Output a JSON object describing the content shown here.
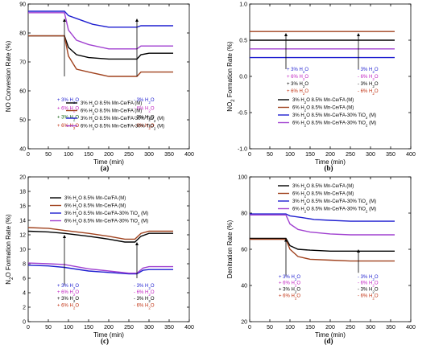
{
  "chart_data": [
    {
      "id": "a",
      "type": "line",
      "panel_label": "(a)",
      "xlabel": "Time (min)",
      "ylabel": "NO Conversion Rate (%)",
      "xlim": [
        0,
        400
      ],
      "ylim": [
        40,
        90
      ],
      "xticks": [
        0,
        50,
        100,
        150,
        200,
        250,
        300,
        350,
        400
      ],
      "yticks": [
        40,
        50,
        60,
        70,
        80,
        90
      ],
      "arrows": [
        {
          "x": 90,
          "y0": 65,
          "y1": 85
        },
        {
          "x": 270,
          "y0": 65,
          "y1": 85
        }
      ],
      "annotations": [
        {
          "side": "left",
          "x": 72,
          "lines": [
            {
              "text": "+ 3% H₂O",
              "color": "#1f1fd0",
              "y": 57
            },
            {
              "text": "+ 6% H₂O",
              "color": "#c020c0",
              "y": 54
            },
            {
              "text": "+ 3% H₂O",
              "color": "#106010",
              "y": 51
            },
            {
              "text": "+ 6% H₂O",
              "color": "#c03010",
              "y": 48
            }
          ]
        },
        {
          "side": "right",
          "x": 262,
          "lines": [
            {
              "text": "- 3% H₂O",
              "color": "#1f1fd0",
              "y": 57
            },
            {
              "text": "- 6% H₂O",
              "color": "#c020c0",
              "y": 54
            },
            {
              "text": "- 3% H₂O",
              "color": "#000000",
              "y": 51
            },
            {
              "text": "- 6% H₂O",
              "color": "#c03010",
              "y": 48
            }
          ]
        }
      ],
      "series": [
        {
          "name": "3% H₂O  8.5% Mn-Ce/FA (M)",
          "color": "#000000",
          "x": [
            0,
            80,
            90,
            100,
            120,
            150,
            200,
            250,
            270,
            280,
            300,
            360
          ],
          "y": [
            79,
            79,
            79,
            75,
            72.5,
            71.5,
            71,
            71,
            71,
            72.5,
            73,
            73
          ]
        },
        {
          "name": "6% H₂O  8.5% Mn-Ce/FA (M)",
          "color": "#a0421e",
          "x": [
            0,
            80,
            90,
            100,
            120,
            150,
            200,
            250,
            270,
            280,
            300,
            360
          ],
          "y": [
            79,
            79,
            79,
            72,
            67.5,
            66.5,
            65,
            65,
            65,
            66.5,
            66.5,
            66.5
          ]
        },
        {
          "name": "3% H₂O  8.5% Mn-Ce/FA-30% TiO₂ (M)",
          "color": "#1f1fd0",
          "x": [
            0,
            80,
            90,
            100,
            130,
            160,
            200,
            250,
            270,
            280,
            300,
            360
          ],
          "y": [
            87.5,
            87.5,
            87.5,
            86,
            84.5,
            83,
            82,
            82,
            82,
            82.5,
            82.5,
            82.5
          ]
        },
        {
          "name": "6% H₂O  8.5% Mn-Ce/FA-30% TiO₂ (M)",
          "color": "#a040d0",
          "x": [
            0,
            80,
            90,
            100,
            120,
            150,
            200,
            250,
            270,
            280,
            300,
            360
          ],
          "y": [
            87,
            87,
            87,
            81,
            77.5,
            76,
            74.5,
            74.5,
            74.5,
            75.5,
            75.5,
            75.5
          ]
        }
      ]
    },
    {
      "id": "b",
      "type": "line",
      "panel_label": "(b)",
      "xlabel": "Time (min)",
      "ylabel": "NO₂ Formation Rate (%)",
      "xlim": [
        0,
        400
      ],
      "ylim": [
        -1.0,
        1.0
      ],
      "xticks": [
        0,
        50,
        100,
        150,
        200,
        250,
        300,
        350,
        400
      ],
      "yticks": [
        -1.0,
        -0.5,
        0.0,
        0.5,
        1.0
      ],
      "ytick_labels": [
        "-1.0",
        "-0.5",
        "0.0",
        "0.5",
        "1.0"
      ],
      "arrows": [
        {
          "x": 90,
          "y0": 0.1,
          "y1": 0.6
        },
        {
          "x": 270,
          "y0": 0.1,
          "y1": 0.6
        }
      ],
      "annotations": [
        {
          "side": "left",
          "x": 92,
          "lines": [
            {
              "text": "+ 3% H₂O",
              "color": "#1f1fd0",
              "y": 0.1
            },
            {
              "text": "+ 6% H₂O",
              "color": "#c020c0",
              "y": 0.0
            },
            {
              "text": "+ 3% H₂O",
              "color": "#000000",
              "y": -0.1
            },
            {
              "text": "+ 6% H₂O",
              "color": "#c03010",
              "y": -0.2
            }
          ]
        },
        {
          "side": "right",
          "x": 268,
          "lines": [
            {
              "text": "- 3% H₂O",
              "color": "#1f1fd0",
              "y": 0.1
            },
            {
              "text": "- 6% H₂O",
              "color": "#c020c0",
              "y": 0.0
            },
            {
              "text": "- 3% H₂O",
              "color": "#000000",
              "y": -0.1
            },
            {
              "text": "- 6% H₂O",
              "color": "#c03010",
              "y": -0.2
            }
          ]
        }
      ],
      "series": [
        {
          "name": "3% H₂O  8.5% Mn-Ce/FA (M)",
          "color": "#000000",
          "x": [
            0,
            360
          ],
          "y": [
            0.5,
            0.5
          ]
        },
        {
          "name": "6% H₂O  8.5% Mn-Ce/FA (M)",
          "color": "#a0421e",
          "x": [
            0,
            360
          ],
          "y": [
            0.62,
            0.62
          ]
        },
        {
          "name": "3% H₂O  8.5% Mn-Ce/FA-30% TiO₂ (M)",
          "color": "#1f1fd0",
          "x": [
            0,
            360
          ],
          "y": [
            0.26,
            0.26
          ]
        },
        {
          "name": "6% H₂O  8.5% Mn-Ce/FA-30% TiO₂ (M)",
          "color": "#a040d0",
          "x": [
            0,
            360
          ],
          "y": [
            0.38,
            0.38
          ]
        }
      ]
    },
    {
      "id": "c",
      "type": "line",
      "panel_label": "(c)",
      "xlabel": "Time (min)",
      "ylabel": "N₂O Formation Rate (%)",
      "xlim": [
        0,
        400
      ],
      "ylim": [
        0,
        20
      ],
      "xticks": [
        0,
        50,
        100,
        150,
        200,
        250,
        300,
        350,
        400
      ],
      "yticks": [
        0,
        2,
        4,
        6,
        8,
        10,
        12,
        14,
        16,
        18,
        20
      ],
      "arrows": [
        {
          "x": 90,
          "y0": 5,
          "y1": 12
        },
        {
          "x": 270,
          "y0": 6,
          "y1": 11
        }
      ],
      "annotations": [
        {
          "side": "left",
          "x": 72,
          "lines": [
            {
              "text": "+ 3% H₂O",
              "color": "#1f1fd0",
              "y": 5.0
            },
            {
              "text": "+ 6% H₂O",
              "color": "#c020c0",
              "y": 4.1
            },
            {
              "text": "+ 3% H₂O",
              "color": "#000000",
              "y": 3.2
            },
            {
              "text": "+ 6% H₂O",
              "color": "#c03010",
              "y": 2.3
            }
          ]
        },
        {
          "side": "right",
          "x": 262,
          "lines": [
            {
              "text": "- 3% H₂O",
              "color": "#1f1fd0",
              "y": 5.0
            },
            {
              "text": "- 6% H₂O",
              "color": "#c020c0",
              "y": 4.1
            },
            {
              "text": "- 3% H₂O",
              "color": "#000000",
              "y": 3.2
            },
            {
              "text": "- 6% H₂O",
              "color": "#c03010",
              "y": 2.3
            }
          ]
        }
      ],
      "series": [
        {
          "name": "3% H₂O  8.5% Mn-Ce/FA (M)",
          "color": "#000000",
          "x": [
            0,
            50,
            90,
            150,
            200,
            240,
            265,
            280,
            300,
            360
          ],
          "y": [
            12.5,
            12.4,
            12.2,
            11.8,
            11.4,
            11.0,
            11.0,
            11.8,
            12.2,
            12.2
          ]
        },
        {
          "name": "6% H₂O  8.5% Mn-Ce/FA (M)",
          "color": "#a0421e",
          "x": [
            0,
            50,
            90,
            150,
            200,
            240,
            265,
            280,
            300,
            360
          ],
          "y": [
            13.0,
            12.9,
            12.6,
            12.2,
            11.8,
            11.4,
            11.4,
            12.2,
            12.5,
            12.5
          ]
        },
        {
          "name": "3% H₂O  8.5% Mn-Ce/FA-30% TiO₂ (M)",
          "color": "#1f1fd0",
          "x": [
            0,
            50,
            90,
            150,
            200,
            250,
            270,
            285,
            300,
            360
          ],
          "y": [
            7.8,
            7.7,
            7.5,
            7.0,
            6.8,
            6.6,
            6.6,
            7.1,
            7.2,
            7.2
          ]
        },
        {
          "name": "6% H₂O  8.5% Mn-Ce/FA-30% TiO₂ (M)",
          "color": "#a040d0",
          "x": [
            0,
            50,
            90,
            150,
            200,
            250,
            270,
            285,
            300,
            360
          ],
          "y": [
            8.1,
            8.0,
            7.9,
            7.3,
            7.0,
            6.7,
            6.7,
            7.4,
            7.6,
            7.6
          ]
        }
      ]
    },
    {
      "id": "d",
      "type": "line",
      "panel_label": "(d)",
      "xlabel": "Time (min)",
      "ylabel": "Denitration Rate (%)",
      "xlim": [
        0,
        400
      ],
      "ylim": [
        20,
        100
      ],
      "xticks": [
        0,
        50,
        100,
        150,
        200,
        250,
        300,
        350,
        400
      ],
      "yticks": [
        20,
        40,
        60,
        80,
        100
      ],
      "arrows": [
        {
          "x": 90,
          "y0": 45,
          "y1": 66
        },
        {
          "x": 270,
          "y0": 47,
          "y1": 60
        }
      ],
      "annotations": [
        {
          "side": "left",
          "x": 72,
          "lines": [
            {
              "text": "+ 3% H₂O",
              "color": "#1f1fd0",
              "y": 45
            },
            {
              "text": "+ 6% H₂O",
              "color": "#c020c0",
              "y": 41.5
            },
            {
              "text": "+ 3% H₂O",
              "color": "#000000",
              "y": 38
            },
            {
              "text": "+ 6% H₂O",
              "color": "#c03010",
              "y": 34.5
            }
          ]
        },
        {
          "side": "right",
          "x": 268,
          "lines": [
            {
              "text": "- 3% H₂O",
              "color": "#1f1fd0",
              "y": 45
            },
            {
              "text": "- 6% H₂O",
              "color": "#c020c0",
              "y": 41.5
            },
            {
              "text": "- 3% H₂O",
              "color": "#000000",
              "y": 38
            },
            {
              "text": "- 6% H₂O",
              "color": "#c03010",
              "y": 34.5
            }
          ]
        }
      ],
      "series": [
        {
          "name": "3% H₂O  8.5% Mn-Ce/FA (M)",
          "color": "#000000",
          "x": [
            0,
            80,
            90,
            100,
            120,
            150,
            200,
            250,
            270,
            300,
            360
          ],
          "y": [
            66,
            66,
            66,
            62,
            60,
            59.5,
            59,
            59,
            59,
            59,
            59
          ]
        },
        {
          "name": "6% H₂O  8.5% Mn-Ce/FA (M)",
          "color": "#a0421e",
          "x": [
            0,
            80,
            90,
            100,
            120,
            150,
            200,
            250,
            270,
            300,
            360
          ],
          "y": [
            65.5,
            65.5,
            65.5,
            60,
            56,
            54.5,
            54,
            53.5,
            53.5,
            53.5,
            53.5
          ]
        },
        {
          "name": "3% H₂O  8.5% Mn-Ce/FA-30% TiO₂ (M)",
          "color": "#1f1fd0",
          "x": [
            0,
            80,
            90,
            100,
            130,
            160,
            200,
            250,
            270,
            300,
            360
          ],
          "y": [
            79.5,
            79.5,
            79.5,
            78.5,
            77.5,
            76.5,
            76,
            75.5,
            75.5,
            75.5,
            75.5
          ]
        },
        {
          "name": "6% H₂O  8.5% Mn-Ce/FA-30% TiO₂ (M)",
          "color": "#a040d0",
          "x": [
            0,
            80,
            90,
            100,
            120,
            150,
            200,
            250,
            270,
            300,
            360
          ],
          "y": [
            79,
            79,
            79,
            74,
            71,
            69.5,
            68.5,
            68,
            68,
            68,
            68
          ]
        }
      ]
    }
  ]
}
